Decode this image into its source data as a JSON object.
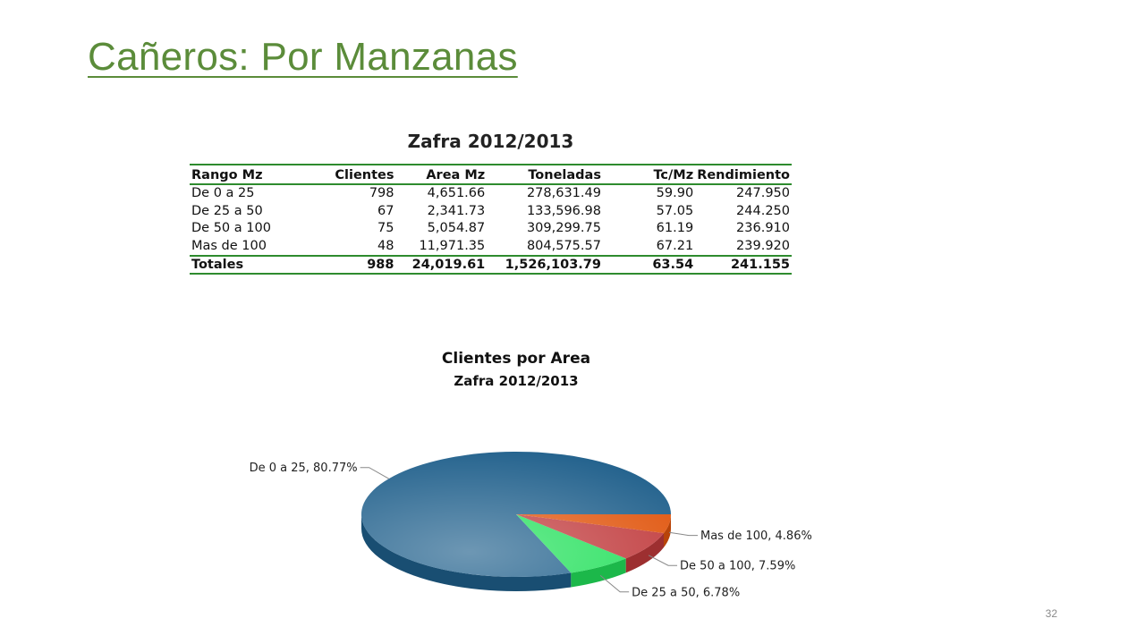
{
  "slide": {
    "title": "Cañeros: Por Manzanas",
    "page_number": "32"
  },
  "table": {
    "title": "Zafra 2012/2013",
    "headers": [
      "Rango Mz",
      "Clientes",
      "Area Mz",
      "Toneladas",
      "Tc/Mz",
      "Rendimiento"
    ],
    "rows": [
      [
        "De 0 a 25",
        "798",
        "4,651.66",
        "278,631.49",
        "59.90",
        "247.950"
      ],
      [
        "De 25 a 50",
        "67",
        "2,341.73",
        "133,596.98",
        "57.05",
        "244.250"
      ],
      [
        "De 50 a 100",
        "75",
        "5,054.87",
        "309,299.75",
        "61.19",
        "236.910"
      ],
      [
        "Mas de 100",
        "48",
        "11,971.35",
        "804,575.57",
        "67.21",
        "239.920"
      ]
    ],
    "totals": [
      "Totales",
      "988",
      "24,019.61",
      "1,526,103.79",
      "63.54",
      "241.155"
    ],
    "rule_color": "#2e8b2e"
  },
  "chart_data": {
    "type": "pie",
    "title": "Clientes por Area",
    "subtitle": "Zafra 2012/2013",
    "slices": [
      {
        "category": "De 0 a 25",
        "value": 80.77,
        "label": "De 0 a 25, 80.77%",
        "color": "#1f5f8b"
      },
      {
        "category": "De 25 a 50",
        "value": 6.78,
        "label": "De 25 a 50, 6.78%",
        "color": "#22e05a"
      },
      {
        "category": "De 50 a 100",
        "value": 7.59,
        "label": "De 50 a 100, 7.59%",
        "color": "#c0393b"
      },
      {
        "category": "Mas de 100",
        "value": 4.86,
        "label": "Mas de 100, 4.86%",
        "color": "#e0530a"
      }
    ]
  }
}
